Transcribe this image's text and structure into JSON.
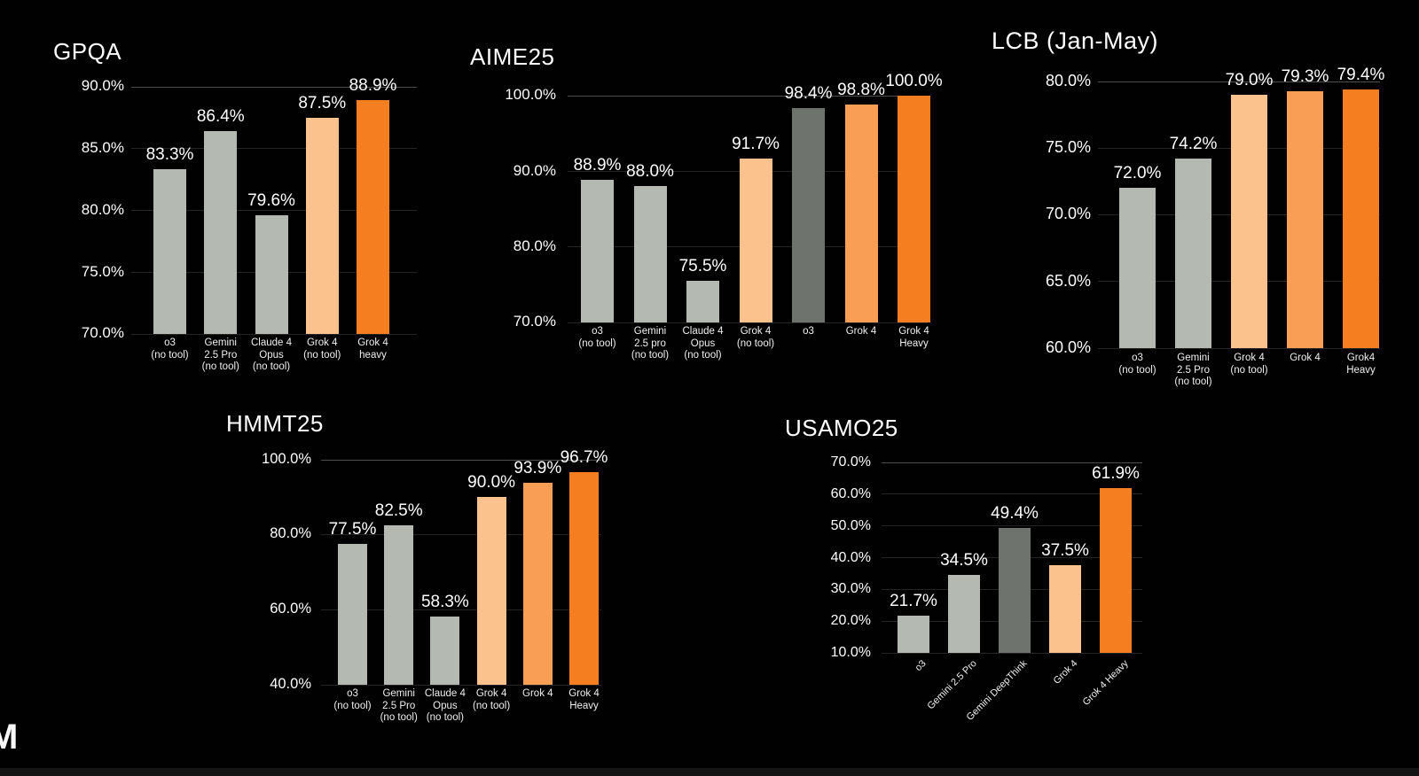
{
  "page": {
    "background": "#010101",
    "watermark_letter": "M"
  },
  "palette": {
    "bar_gray": "#b4b9b2",
    "bar_dark_gray": "#6e736e",
    "bar_peach": "#fcc28e",
    "bar_orange": "#f99e55",
    "bar_orange_deep": "#f57e20",
    "text_primary": "#ffffff",
    "grid_faint": "#242424",
    "grid_top": "#4e4e4e"
  },
  "chart_data": [
    {
      "type": "bar",
      "title": "GPQA",
      "categories": [
        "o3\n(no tool)",
        "Gemini\n2.5 Pro\n(no tool)",
        "Claude 4\nOpus\n(no tool)",
        "Grok 4\n(no tool)",
        "Grok 4\nheavy"
      ],
      "values": [
        83.3,
        86.4,
        79.6,
        87.5,
        88.9
      ],
      "value_labels": [
        "83.3%",
        "86.4%",
        "79.6%",
        "87.5%",
        "88.9%"
      ],
      "bar_colors": [
        "gray",
        "gray",
        "gray",
        "peach",
        "orange_deep"
      ],
      "ylim": [
        70,
        90
      ],
      "ytick_values": [
        70,
        75,
        80,
        85,
        90
      ],
      "ytick_labels": [
        "70.0%",
        "75.0%",
        "80.0%",
        "85.0%",
        "90.0%"
      ],
      "xlabel": "",
      "ylabel": "",
      "grid": "horizontal-faint",
      "legend": "none"
    },
    {
      "type": "bar",
      "title": "AIME25",
      "categories": [
        "o3\n(no tool)",
        "Gemini\n2.5 pro\n(no tool)",
        "Claude 4\nOpus\n(no tool)",
        "Grok 4\n(no tool)",
        "o3",
        "Grok 4",
        "Grok 4\nHeavy"
      ],
      "values": [
        88.9,
        88.0,
        75.5,
        91.7,
        98.4,
        98.8,
        100.0
      ],
      "value_labels": [
        "88.9%",
        "88.0%",
        "75.5%",
        "91.7%",
        "98.4%",
        "98.8%",
        "100.0%"
      ],
      "bar_colors": [
        "gray",
        "gray",
        "gray",
        "peach",
        "dark_gray",
        "orange",
        "orange_deep"
      ],
      "ylim": [
        70,
        100
      ],
      "ytick_values": [
        70,
        80,
        90,
        100
      ],
      "ytick_labels": [
        "70.0%",
        "80.0%",
        "90.0%",
        "100.0%"
      ],
      "xlabel": "",
      "ylabel": "",
      "grid": "horizontal-faint",
      "legend": "none"
    },
    {
      "type": "bar",
      "title": "LCB (Jan-May)",
      "categories": [
        "o3\n(no tool)",
        "Gemini\n2.5 Pro\n(no tool)",
        "Grok 4\n(no tool)",
        "Grok 4",
        "Grok4\nHeavy"
      ],
      "values": [
        72.0,
        74.2,
        79.0,
        79.3,
        79.4
      ],
      "value_labels": [
        "72.0%",
        "74.2%",
        "79.0%",
        "79.3%",
        "79.4%"
      ],
      "bar_colors": [
        "gray",
        "gray",
        "peach",
        "orange",
        "orange_deep"
      ],
      "ylim": [
        60,
        80
      ],
      "ytick_values": [
        60,
        65,
        70,
        75,
        80
      ],
      "ytick_labels": [
        "60.0%",
        "65.0%",
        "70.0%",
        "75.0%",
        "80.0%"
      ],
      "xlabel": "",
      "ylabel": "",
      "grid": "horizontal-faint",
      "legend": "none"
    },
    {
      "type": "bar",
      "title": "HMMT25",
      "categories": [
        "o3\n(no tool)",
        "Gemini\n2.5 Pro\n(no tool)",
        "Claude 4\nOpus\n(no tool)",
        "Grok 4\n(no tool)",
        "Grok 4",
        "Grok 4\nHeavy"
      ],
      "values": [
        77.5,
        82.5,
        58.3,
        90.0,
        93.9,
        96.7
      ],
      "value_labels": [
        "77.5%",
        "82.5%",
        "58.3%",
        "90.0%",
        "93.9%",
        "96.7%"
      ],
      "bar_colors": [
        "gray",
        "gray",
        "gray",
        "peach",
        "orange",
        "orange_deep"
      ],
      "ylim": [
        40,
        100
      ],
      "ytick_values": [
        40,
        60,
        80,
        100
      ],
      "ytick_labels": [
        "40.0%",
        "60.0%",
        "80.0%",
        "100.0%"
      ],
      "xlabel": "",
      "ylabel": "",
      "grid": "horizontal-faint",
      "legend": "none"
    },
    {
      "type": "bar",
      "title": "USAMO25",
      "categories": [
        "o3",
        "Gemini 2.5 Pro",
        "Gemini DeepThink",
        "Grok 4",
        "Grok 4 Heavy"
      ],
      "values": [
        21.7,
        34.5,
        49.4,
        37.5,
        61.9
      ],
      "value_labels": [
        "21.7%",
        "34.5%",
        "49.4%",
        "37.5%",
        "61.9%"
      ],
      "bar_colors": [
        "gray",
        "gray",
        "dark_gray",
        "peach",
        "orange_deep"
      ],
      "ylim": [
        10,
        70
      ],
      "ytick_values": [
        10,
        20,
        30,
        40,
        50,
        60,
        70
      ],
      "ytick_labels": [
        "10.0%",
        "20.0%",
        "30.0%",
        "40.0%",
        "50.0%",
        "60.0%",
        "70.0%"
      ],
      "x_label_rotation_deg": -45,
      "xlabel": "",
      "ylabel": "",
      "grid": "horizontal-faint",
      "legend": "none"
    }
  ]
}
